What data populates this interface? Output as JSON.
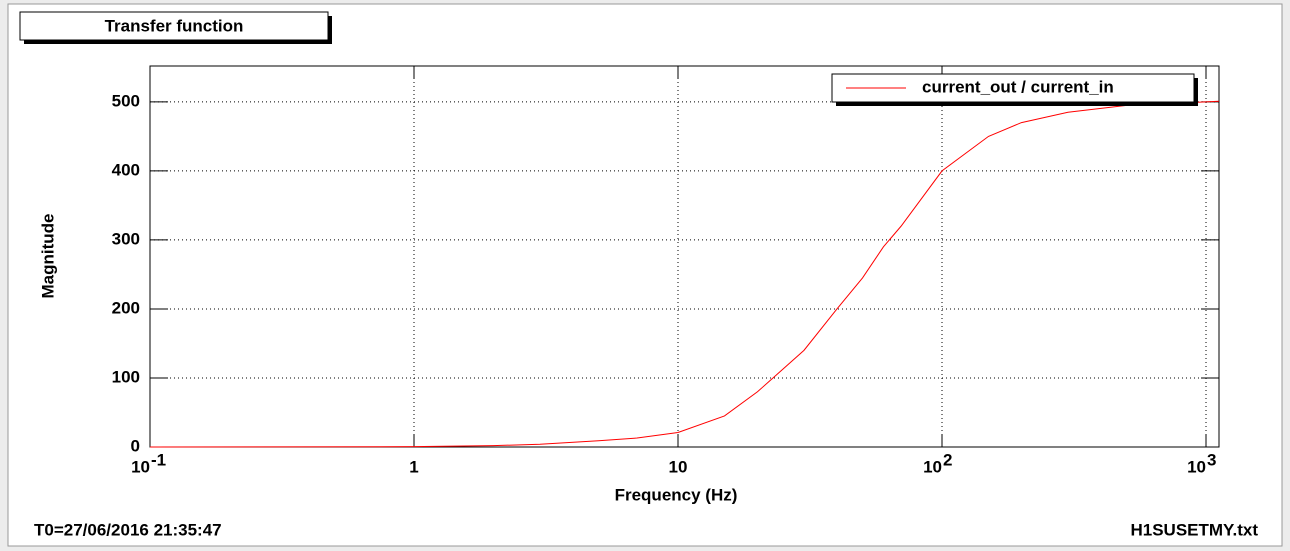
{
  "chart_data": {
    "type": "line",
    "title": "Transfer function",
    "xlabel": "Frequency (Hz)",
    "ylabel": "Magnitude",
    "x_scale": "log",
    "grid": true,
    "legend_position": "upper-right",
    "x": [
      0.1,
      1,
      2,
      3,
      5,
      7,
      10,
      15,
      20,
      30,
      40,
      50,
      60,
      70,
      100,
      150,
      200,
      300,
      500,
      1000,
      1120
    ],
    "series": [
      {
        "name": "current_out / current_in",
        "color": "#ff0000",
        "values": [
          0,
          0.5,
          2,
          4,
          9,
          13,
          21,
          45,
          80,
          140,
          200,
          245,
          290,
          320,
          400,
          450,
          470,
          485,
          495,
          500,
          501
        ]
      }
    ],
    "xlim": [
      0.1,
      1120
    ],
    "ylim": [
      0,
      552
    ],
    "xticks": [
      {
        "value": 0.1,
        "label": "10",
        "exponent": "-1"
      },
      1,
      10,
      {
        "value": 100,
        "label": "10",
        "exponent": "2"
      },
      {
        "value": 1000,
        "label": "10",
        "exponent": "3"
      }
    ],
    "yticks": [
      0,
      100,
      200,
      300,
      400,
      500
    ],
    "footer_left": "T0=27/06/2016 21:35:47",
    "footer_right": "H1SUSETMY.txt"
  }
}
